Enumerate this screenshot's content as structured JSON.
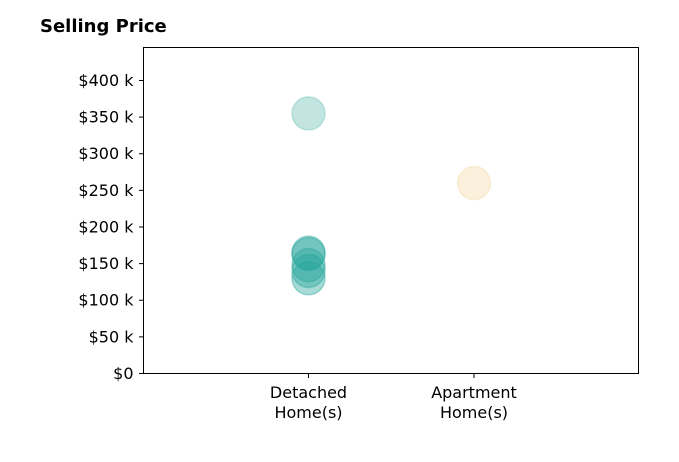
{
  "chart_data": {
    "type": "scatter",
    "title": "Selling Price",
    "xlabel": "",
    "ylabel": "",
    "categories": [
      [
        "Detached",
        "Home(s)"
      ],
      [
        "Apartment",
        "Home(s)"
      ]
    ],
    "ylim": [
      0,
      445
    ],
    "yticks": [
      0,
      50,
      100,
      150,
      200,
      250,
      300,
      350,
      400
    ],
    "ytick_labels": [
      "$0",
      "$50 k",
      "$100 k",
      "$150 k",
      "$200 k",
      "$250 k",
      "$300 k",
      "$350 k",
      "$400 k"
    ],
    "grid": false,
    "points": [
      {
        "category": 0,
        "value": 355,
        "color": "#69bfb3"
      },
      {
        "category": 0,
        "value": 165,
        "color": "#26a69a"
      },
      {
        "category": 0,
        "value": 163,
        "color": "#26a69a"
      },
      {
        "category": 0,
        "value": 148,
        "color": "#26a69a"
      },
      {
        "category": 0,
        "value": 140,
        "color": "#26a69a"
      },
      {
        "category": 0,
        "value": 130,
        "color": "#26a69a"
      },
      {
        "category": 1,
        "value": 260,
        "color": "#f3d9a4"
      }
    ]
  }
}
